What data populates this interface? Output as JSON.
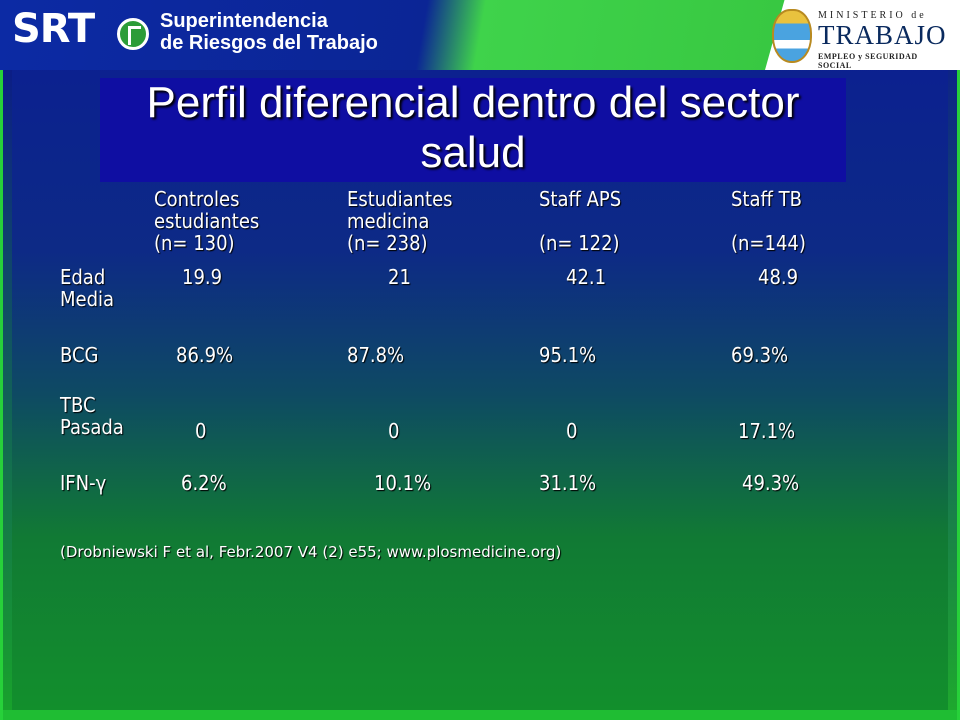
{
  "header": {
    "logo_text": "SRT",
    "org_name_line1": "Superintendencia",
    "org_name_line2": "de Riesgos del Trabajo",
    "ministry_top": "MINISTERIO de",
    "ministry_main": "TRABAJO",
    "ministry_sub": "EMPLEO y SEGURIDAD SOCIAL"
  },
  "slide": {
    "title_line1": "Perfil diferencial dentro del sector",
    "title_line2": "salud",
    "columns": [
      {
        "line1": "Controles",
        "line2": "estudiantes",
        "line3": "(n= 130)"
      },
      {
        "line1": "Estudiantes",
        "line2": "medicina",
        "line3": "(n= 238)"
      },
      {
        "line1": "Staff APS",
        "line2": "",
        "line3": "(n= 122)"
      },
      {
        "line1": "Staff TB",
        "line2": "",
        "line3": "(n=144)"
      }
    ],
    "rows": [
      {
        "label1": "Edad",
        "label2": "Media",
        "values": [
          "19.9",
          "21",
          "42.1",
          "48.9"
        ]
      },
      {
        "label1": "BCG",
        "label2": "",
        "values": [
          "86.9%",
          "87.8%",
          "95.1%",
          "69.3%"
        ]
      },
      {
        "label1": "TBC",
        "label2": "Pasada",
        "values": [
          "0",
          "0",
          "0",
          "17.1%"
        ]
      },
      {
        "label1": "IFN-γ",
        "label2": "",
        "values": [
          "6.2%",
          "10.1%",
          "31.1%",
          "49.3%"
        ]
      }
    ],
    "citation": "(Drobniewski F et al, Febr.2007 V4 (2) e55; www.plosmedicine.org)"
  },
  "colors": {
    "title_bg": "#0f0ea2",
    "green_accent": "#27d13a",
    "header_blue": "#0c2aa4"
  }
}
